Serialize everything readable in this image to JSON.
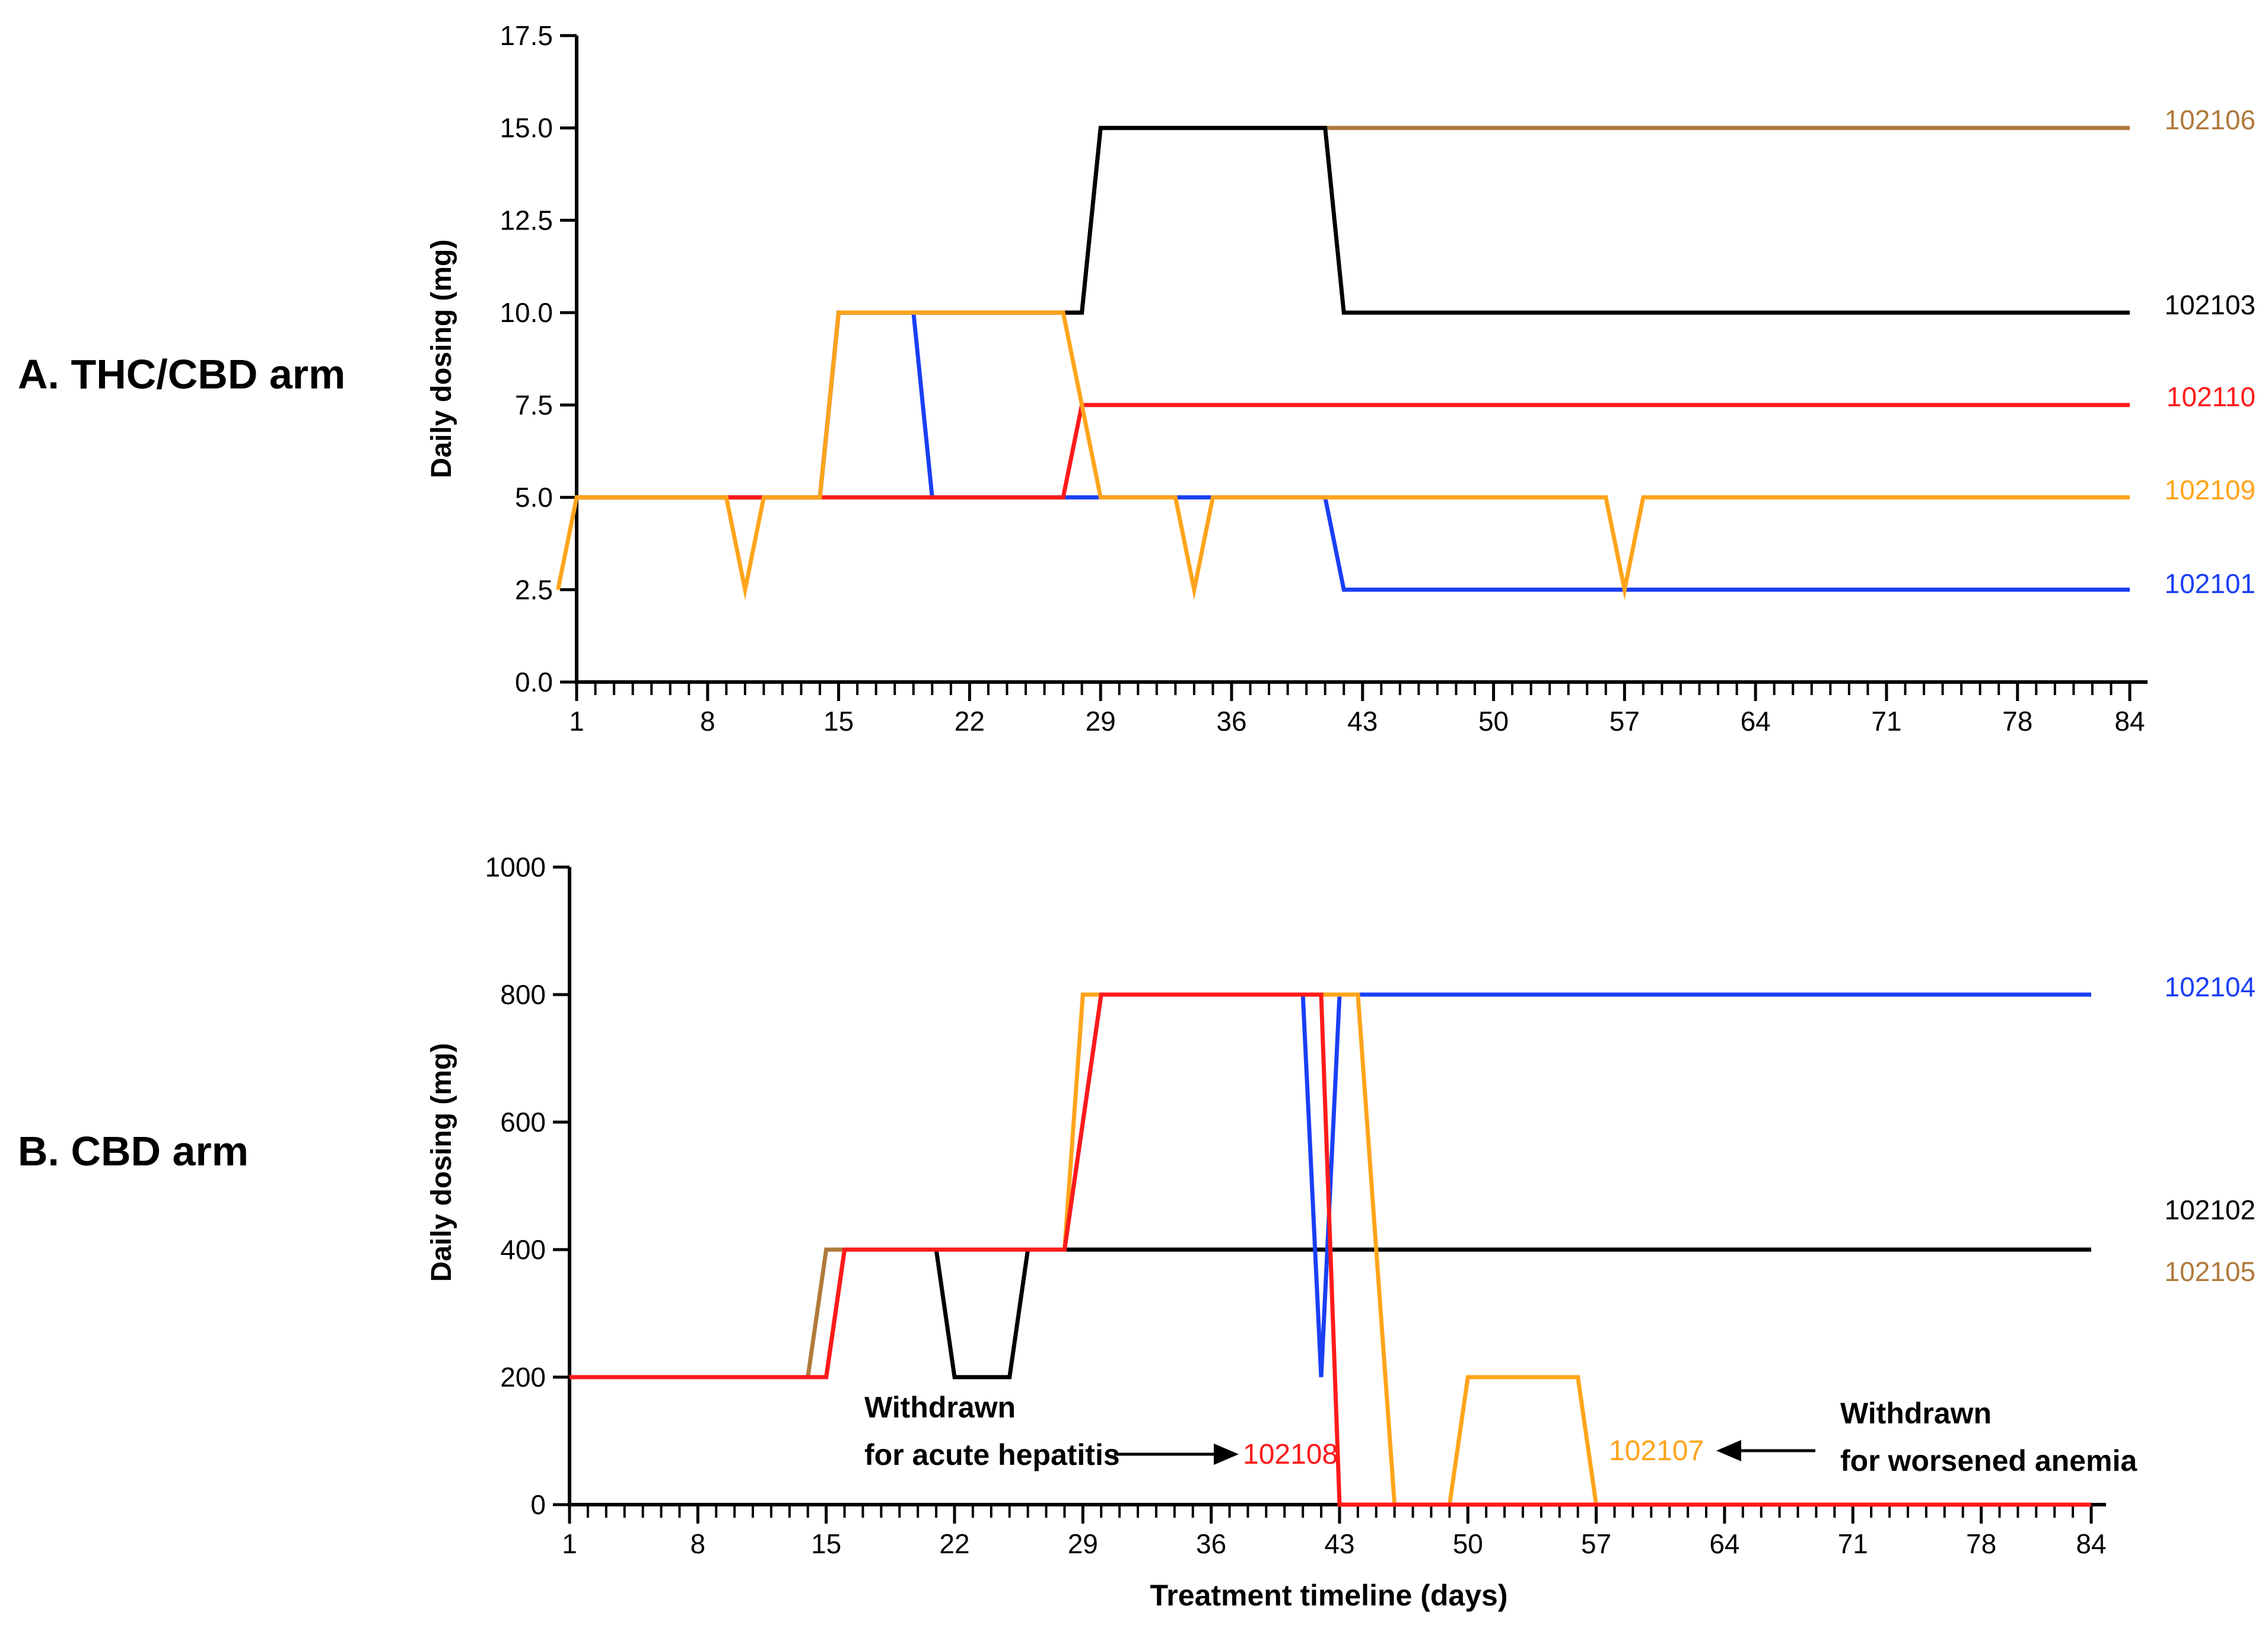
{
  "chart_data": [
    {
      "id": "A",
      "type": "line",
      "panel_label": "A. THC/CBD arm",
      "title": "",
      "xlabel": "",
      "ylabel": "Daily dosing (mg)",
      "xlim": [
        0,
        84
      ],
      "ylim": [
        0,
        17.5
      ],
      "yticks": [
        0,
        2.5,
        5,
        7.5,
        10,
        12.5,
        15,
        17.5
      ],
      "ytick_labels": [
        "0.0",
        "2.5",
        "5.0",
        "7.5",
        "10.0",
        "12.5",
        "15.0",
        "17.5"
      ],
      "xticks": [
        1,
        8,
        15,
        22,
        29,
        36,
        43,
        50,
        57,
        64,
        71,
        78,
        84
      ],
      "xtick_labels": [
        "1",
        "8",
        "15",
        "22",
        "29",
        "36",
        "43",
        "50",
        "57",
        "64",
        "71",
        "78",
        "84"
      ],
      "series": [
        {
          "name": "102106",
          "color": "#b07a3c",
          "points": [
            [
              1,
              5
            ],
            [
              14,
              5
            ],
            [
              15,
              10
            ],
            [
              28,
              10
            ],
            [
              29,
              15
            ],
            [
              84,
              15
            ]
          ]
        },
        {
          "name": "102103",
          "color": "#000000",
          "points": [
            [
              1,
              5
            ],
            [
              14,
              5
            ],
            [
              15,
              10
            ],
            [
              28,
              10
            ],
            [
              29,
              15
            ],
            [
              41,
              15
            ],
            [
              42,
              10
            ],
            [
              84,
              10
            ]
          ]
        },
        {
          "name": "102101",
          "color": "#1a3ff5",
          "points": [
            [
              1,
              5
            ],
            [
              14,
              5
            ],
            [
              15,
              10
            ],
            [
              19,
              10
            ],
            [
              20,
              5
            ],
            [
              41,
              5
            ],
            [
              42,
              2.5
            ],
            [
              84,
              2.5
            ]
          ]
        },
        {
          "name": "102110",
          "color": "#ff1a1a",
          "points": [
            [
              1,
              5
            ],
            [
              27,
              5
            ],
            [
              28,
              7.5
            ],
            [
              84,
              7.5
            ]
          ]
        },
        {
          "name": "102109",
          "color": "#ffa41b",
          "points": [
            [
              0,
              2.5
            ],
            [
              1,
              5
            ],
            [
              9,
              5
            ],
            [
              10,
              2.5
            ],
            [
              11,
              5
            ],
            [
              14,
              5
            ],
            [
              15,
              10
            ],
            [
              27,
              10
            ],
            [
              29,
              5
            ],
            [
              33,
              5
            ],
            [
              34,
              2.5
            ],
            [
              35,
              5
            ],
            [
              56,
              5
            ],
            [
              57,
              2.5
            ],
            [
              58,
              5
            ],
            [
              84,
              5
            ]
          ]
        }
      ],
      "series_labels": [
        "102106",
        "102103",
        "102110",
        "102109",
        "102101"
      ],
      "annotations": []
    },
    {
      "id": "B",
      "type": "line",
      "panel_label": "B. CBD arm",
      "title": "",
      "xlabel": "Treatment timeline (days)",
      "ylabel": "Daily dosing (mg)",
      "xlim": [
        0,
        84
      ],
      "ylim": [
        0,
        1000
      ],
      "yticks": [
        0,
        200,
        400,
        600,
        800,
        1000
      ],
      "ytick_labels": [
        "0",
        "200",
        "400",
        "600",
        "800",
        "1000"
      ],
      "xticks": [
        1,
        8,
        15,
        22,
        29,
        36,
        43,
        50,
        57,
        64,
        71,
        78,
        84
      ],
      "xtick_labels": [
        "1",
        "8",
        "15",
        "22",
        "29",
        "36",
        "43",
        "50",
        "57",
        "64",
        "71",
        "78",
        "84"
      ],
      "series": [
        {
          "name": "102105",
          "color": "#b07a3c",
          "points": [
            [
              1,
              200
            ],
            [
              14,
              200
            ],
            [
              15,
              400
            ],
            [
              84,
              400
            ]
          ]
        },
        {
          "name": "102102",
          "color": "#000000",
          "points": [
            [
              1,
              200
            ],
            [
              15,
              200
            ],
            [
              16,
              400
            ],
            [
              21,
              400
            ],
            [
              22,
              200
            ],
            [
              25,
              200
            ],
            [
              26,
              400
            ],
            [
              84,
              400
            ]
          ]
        },
        {
          "name": "102104",
          "color": "#1a3ff5",
          "points": [
            [
              1,
              200
            ],
            [
              15,
              200
            ],
            [
              16,
              400
            ],
            [
              28,
              400
            ],
            [
              30,
              800
            ],
            [
              41,
              800
            ],
            [
              42,
              200
            ],
            [
              43,
              800
            ],
            [
              84,
              800
            ]
          ]
        },
        {
          "name": "102107",
          "color": "#ffa41b",
          "points": [
            [
              1,
              200
            ],
            [
              15,
              200
            ],
            [
              16,
              400
            ],
            [
              28,
              400
            ],
            [
              29,
              800
            ],
            [
              44,
              800
            ],
            [
              46,
              0
            ],
            [
              49,
              0
            ],
            [
              50,
              200
            ],
            [
              56,
              200
            ],
            [
              57,
              0
            ],
            [
              84,
              0
            ]
          ]
        },
        {
          "name": "102108",
          "color": "#ff1a1a",
          "points": [
            [
              1,
              200
            ],
            [
              15,
              200
            ],
            [
              16,
              400
            ],
            [
              28,
              400
            ],
            [
              30,
              800
            ],
            [
              42,
              800
            ],
            [
              43,
              0
            ],
            [
              84,
              0
            ]
          ]
        }
      ],
      "series_labels": [
        "102104",
        "102102",
        "102105"
      ],
      "annotations": [
        {
          "label": "102108",
          "color": "#ff1a1a",
          "note_line1": "Withdrawn",
          "note_line2": "for acute hepatitis"
        },
        {
          "label": "102107",
          "color": "#ffa41b",
          "note_line1": "Withdrawn",
          "note_line2": "for worsened anemia"
        }
      ]
    }
  ]
}
